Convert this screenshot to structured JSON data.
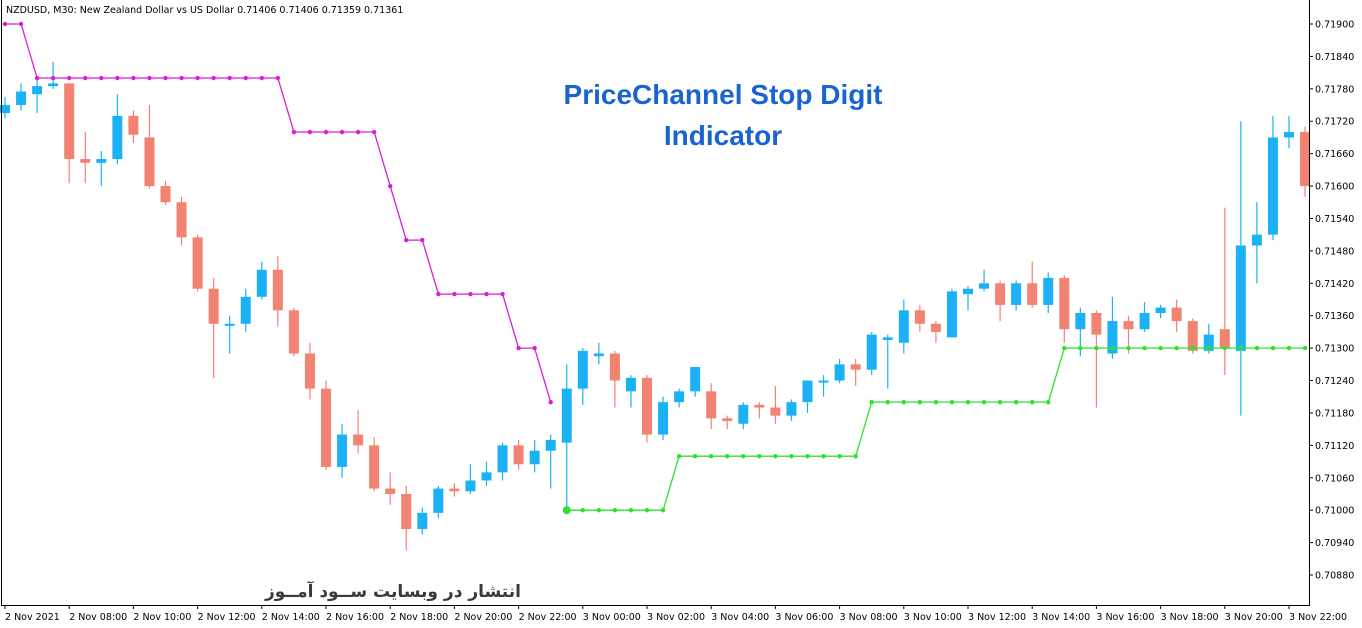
{
  "header": {
    "symbol_line": "NZDUSD, M30:  New Zealand Dollar vs US Dollar  0.71406 0.71406 0.71359 0.71361"
  },
  "overlay": {
    "title_line1": "PriceChannel Stop Digit",
    "title_line2": "Indicator",
    "watermark": "انتشار در وبسایت   ســود آمــوز"
  },
  "colors": {
    "background": "#ffffff",
    "bull": "#1ab2f5",
    "bear": "#f28272",
    "upper_line": "#d81ed8",
    "lower_line": "#2fe030",
    "title": "#1a64d2",
    "axis": "#000000"
  },
  "chart_data": {
    "type": "candlestick",
    "y_axis": {
      "position": "right",
      "min": 0.7084,
      "max": 0.7194,
      "ticks": [
        "0.71900",
        "0.71840",
        "0.71780",
        "0.71720",
        "0.71660",
        "0.71600",
        "0.71540",
        "0.71480",
        "0.71420",
        "0.71360",
        "0.71300",
        "0.71240",
        "0.71180",
        "0.71120",
        "0.71060",
        "0.71000",
        "0.70940",
        "0.70880"
      ]
    },
    "x_axis": {
      "labels": [
        "2 Nov 2021",
        "2 Nov 08:00",
        "2 Nov 10:00",
        "2 Nov 12:00",
        "2 Nov 14:00",
        "2 Nov 16:00",
        "2 Nov 18:00",
        "2 Nov 20:00",
        "2 Nov 22:00",
        "3 Nov 00:00",
        "3 Nov 02:00",
        "3 Nov 04:00",
        "3 Nov 06:00",
        "3 Nov 08:00",
        "3 Nov 10:00",
        "3 Nov 12:00",
        "3 Nov 14:00",
        "3 Nov 16:00",
        "3 Nov 18:00",
        "3 Nov 20:00",
        "3 Nov 22:00"
      ],
      "label_every_bars": 4
    },
    "candles": [
      {
        "o": 0.71735,
        "h": 0.71765,
        "l": 0.71725,
        "c": 0.7175
      },
      {
        "o": 0.7175,
        "h": 0.7179,
        "l": 0.7174,
        "c": 0.71775
      },
      {
        "o": 0.7177,
        "h": 0.718,
        "l": 0.71735,
        "c": 0.71785
      },
      {
        "o": 0.71785,
        "h": 0.7183,
        "l": 0.7178,
        "c": 0.7179
      },
      {
        "o": 0.7179,
        "h": 0.7179,
        "l": 0.71605,
        "c": 0.7165
      },
      {
        "o": 0.7165,
        "h": 0.717,
        "l": 0.71605,
        "c": 0.71643
      },
      {
        "o": 0.71643,
        "h": 0.71665,
        "l": 0.716,
        "c": 0.7165
      },
      {
        "o": 0.7165,
        "h": 0.7177,
        "l": 0.7164,
        "c": 0.7173
      },
      {
        "o": 0.7173,
        "h": 0.7174,
        "l": 0.7168,
        "c": 0.71695
      },
      {
        "o": 0.7169,
        "h": 0.7175,
        "l": 0.71595,
        "c": 0.716
      },
      {
        "o": 0.716,
        "h": 0.7161,
        "l": 0.71565,
        "c": 0.7157
      },
      {
        "o": 0.7157,
        "h": 0.7158,
        "l": 0.7149,
        "c": 0.71505
      },
      {
        "o": 0.71505,
        "h": 0.7151,
        "l": 0.71405,
        "c": 0.7141
      },
      {
        "o": 0.7141,
        "h": 0.7143,
        "l": 0.71245,
        "c": 0.71345
      },
      {
        "o": 0.71345,
        "h": 0.7136,
        "l": 0.7129,
        "c": 0.71345
      },
      {
        "o": 0.71345,
        "h": 0.7141,
        "l": 0.7133,
        "c": 0.71395
      },
      {
        "o": 0.71395,
        "h": 0.7146,
        "l": 0.7139,
        "c": 0.71445
      },
      {
        "o": 0.71445,
        "h": 0.7147,
        "l": 0.7134,
        "c": 0.7137
      },
      {
        "o": 0.7137,
        "h": 0.71375,
        "l": 0.71285,
        "c": 0.7129
      },
      {
        "o": 0.7129,
        "h": 0.7131,
        "l": 0.71205,
        "c": 0.71225
      },
      {
        "o": 0.71225,
        "h": 0.7124,
        "l": 0.71075,
        "c": 0.7108
      },
      {
        "o": 0.7108,
        "h": 0.7116,
        "l": 0.7106,
        "c": 0.7114
      },
      {
        "o": 0.7114,
        "h": 0.71185,
        "l": 0.71105,
        "c": 0.7112
      },
      {
        "o": 0.7112,
        "h": 0.71135,
        "l": 0.71035,
        "c": 0.7104
      },
      {
        "o": 0.7104,
        "h": 0.7107,
        "l": 0.7101,
        "c": 0.7103
      },
      {
        "o": 0.7103,
        "h": 0.71045,
        "l": 0.70925,
        "c": 0.70965
      },
      {
        "o": 0.70965,
        "h": 0.71005,
        "l": 0.70955,
        "c": 0.70995
      },
      {
        "o": 0.70995,
        "h": 0.71045,
        "l": 0.70985,
        "c": 0.7104
      },
      {
        "o": 0.7104,
        "h": 0.7105,
        "l": 0.71025,
        "c": 0.71035
      },
      {
        "o": 0.71035,
        "h": 0.71085,
        "l": 0.7103,
        "c": 0.71055
      },
      {
        "o": 0.71055,
        "h": 0.7109,
        "l": 0.71045,
        "c": 0.7107
      },
      {
        "o": 0.7107,
        "h": 0.71125,
        "l": 0.71055,
        "c": 0.7112
      },
      {
        "o": 0.7112,
        "h": 0.7113,
        "l": 0.71075,
        "c": 0.71085
      },
      {
        "o": 0.71085,
        "h": 0.7113,
        "l": 0.7107,
        "c": 0.7111
      },
      {
        "o": 0.7111,
        "h": 0.7114,
        "l": 0.7104,
        "c": 0.7113
      },
      {
        "o": 0.71125,
        "h": 0.7127,
        "l": 0.71,
        "c": 0.71225
      },
      {
        "o": 0.71225,
        "h": 0.713,
        "l": 0.71195,
        "c": 0.71295
      },
      {
        "o": 0.71285,
        "h": 0.7131,
        "l": 0.7127,
        "c": 0.7129
      },
      {
        "o": 0.7129,
        "h": 0.71295,
        "l": 0.7119,
        "c": 0.7124
      },
      {
        "o": 0.7122,
        "h": 0.7125,
        "l": 0.7119,
        "c": 0.71245
      },
      {
        "o": 0.71245,
        "h": 0.7125,
        "l": 0.71125,
        "c": 0.7114
      },
      {
        "o": 0.7114,
        "h": 0.7121,
        "l": 0.7113,
        "c": 0.712
      },
      {
        "o": 0.712,
        "h": 0.71225,
        "l": 0.7119,
        "c": 0.7122
      },
      {
        "o": 0.7122,
        "h": 0.71265,
        "l": 0.7121,
        "c": 0.71265
      },
      {
        "o": 0.7122,
        "h": 0.71235,
        "l": 0.7115,
        "c": 0.7117
      },
      {
        "o": 0.7117,
        "h": 0.71175,
        "l": 0.7115,
        "c": 0.71165
      },
      {
        "o": 0.7116,
        "h": 0.712,
        "l": 0.7115,
        "c": 0.71195
      },
      {
        "o": 0.71195,
        "h": 0.712,
        "l": 0.7117,
        "c": 0.7119
      },
      {
        "o": 0.7119,
        "h": 0.7123,
        "l": 0.7116,
        "c": 0.71175
      },
      {
        "o": 0.71175,
        "h": 0.71205,
        "l": 0.71165,
        "c": 0.712
      },
      {
        "o": 0.712,
        "h": 0.7124,
        "l": 0.7118,
        "c": 0.7124
      },
      {
        "o": 0.7124,
        "h": 0.7125,
        "l": 0.7121,
        "c": 0.7124
      },
      {
        "o": 0.7124,
        "h": 0.7128,
        "l": 0.71235,
        "c": 0.7127
      },
      {
        "o": 0.7127,
        "h": 0.7128,
        "l": 0.7123,
        "c": 0.7126
      },
      {
        "o": 0.7126,
        "h": 0.7133,
        "l": 0.7125,
        "c": 0.71325
      },
      {
        "o": 0.71315,
        "h": 0.71325,
        "l": 0.71225,
        "c": 0.7132
      },
      {
        "o": 0.7131,
        "h": 0.7139,
        "l": 0.7129,
        "c": 0.7137
      },
      {
        "o": 0.7137,
        "h": 0.7138,
        "l": 0.7133,
        "c": 0.71345
      },
      {
        "o": 0.71345,
        "h": 0.7135,
        "l": 0.7131,
        "c": 0.7133
      },
      {
        "o": 0.7132,
        "h": 0.7141,
        "l": 0.7132,
        "c": 0.71405
      },
      {
        "o": 0.714,
        "h": 0.71415,
        "l": 0.7137,
        "c": 0.7141
      },
      {
        "o": 0.7141,
        "h": 0.71445,
        "l": 0.71405,
        "c": 0.7142
      },
      {
        "o": 0.7142,
        "h": 0.71425,
        "l": 0.7135,
        "c": 0.7138
      },
      {
        "o": 0.7138,
        "h": 0.71425,
        "l": 0.7137,
        "c": 0.7142
      },
      {
        "o": 0.7142,
        "h": 0.7146,
        "l": 0.71375,
        "c": 0.7138
      },
      {
        "o": 0.7138,
        "h": 0.7144,
        "l": 0.71365,
        "c": 0.7143
      },
      {
        "o": 0.7143,
        "h": 0.71435,
        "l": 0.7131,
        "c": 0.71335
      },
      {
        "o": 0.71335,
        "h": 0.71375,
        "l": 0.71285,
        "c": 0.71365
      },
      {
        "o": 0.71365,
        "h": 0.7137,
        "l": 0.7119,
        "c": 0.71325
      },
      {
        "o": 0.7129,
        "h": 0.71395,
        "l": 0.7128,
        "c": 0.7135
      },
      {
        "o": 0.7135,
        "h": 0.7136,
        "l": 0.7129,
        "c": 0.71335
      },
      {
        "o": 0.71335,
        "h": 0.71385,
        "l": 0.7133,
        "c": 0.71365
      },
      {
        "o": 0.71365,
        "h": 0.7138,
        "l": 0.71355,
        "c": 0.71375
      },
      {
        "o": 0.71375,
        "h": 0.7139,
        "l": 0.7133,
        "c": 0.7135
      },
      {
        "o": 0.7135,
        "h": 0.71355,
        "l": 0.7129,
        "c": 0.71295
      },
      {
        "o": 0.71295,
        "h": 0.71345,
        "l": 0.7129,
        "c": 0.71325
      },
      {
        "o": 0.71335,
        "h": 0.7156,
        "l": 0.7125,
        "c": 0.713
      },
      {
        "o": 0.71295,
        "h": 0.7172,
        "l": 0.71175,
        "c": 0.7149
      },
      {
        "o": 0.7149,
        "h": 0.7157,
        "l": 0.7142,
        "c": 0.7151
      },
      {
        "o": 0.7151,
        "h": 0.7173,
        "l": 0.715,
        "c": 0.7169
      },
      {
        "o": 0.7169,
        "h": 0.7173,
        "l": 0.7167,
        "c": 0.717
      },
      {
        "o": 0.717,
        "h": 0.7171,
        "l": 0.7158,
        "c": 0.716
      }
    ],
    "series": [
      {
        "style": "stepped-dotted-line",
        "start_index": 0,
        "values": [
          0.719,
          0.719,
          0.718,
          0.718,
          0.718,
          0.718,
          0.718,
          0.718,
          0.718,
          0.718,
          0.718,
          0.718,
          0.718,
          0.718,
          0.718,
          0.718,
          0.718,
          0.718,
          0.717,
          0.717,
          0.717,
          0.717,
          0.717,
          0.717,
          0.716,
          0.715,
          0.715,
          0.714,
          0.714,
          0.714,
          0.714,
          0.714,
          0.713,
          0.713,
          0.712
        ]
      },
      {
        "style": "stepped-dotted-line",
        "start_index": 35,
        "values": [
          0.71,
          0.71,
          0.71,
          0.71,
          0.71,
          0.71,
          0.71,
          0.711,
          0.711,
          0.711,
          0.711,
          0.711,
          0.711,
          0.711,
          0.711,
          0.711,
          0.711,
          0.711,
          0.711,
          0.712,
          0.712,
          0.712,
          0.712,
          0.712,
          0.712,
          0.712,
          0.712,
          0.712,
          0.712,
          0.712,
          0.712,
          0.713,
          0.713,
          0.713,
          0.713,
          0.713,
          0.713,
          0.713,
          0.713,
          0.713,
          0.713,
          0.713,
          0.713,
          0.713,
          0.713,
          0.713,
          0.713
        ]
      }
    ]
  }
}
